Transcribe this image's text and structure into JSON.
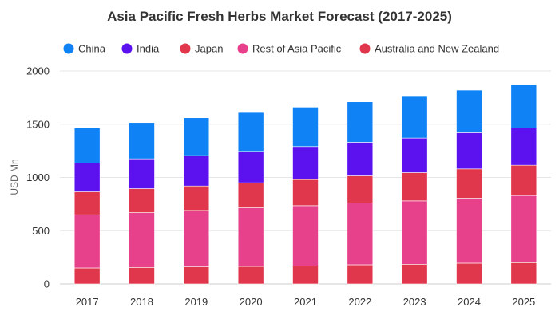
{
  "chart_data": {
    "type": "bar",
    "stacked": true,
    "title": "Asia Pacific Fresh Herbs Market Forecast (2017-2025)",
    "xlabel": "",
    "ylabel": "USD Mn",
    "ylim": [
      0,
      2000
    ],
    "yticks": [
      0,
      500,
      1000,
      1500,
      2000
    ],
    "grid": true,
    "legend_position": "top",
    "categories": [
      "2017",
      "2018",
      "2019",
      "2020",
      "2021",
      "2022",
      "2023",
      "2024",
      "2025"
    ],
    "series": [
      {
        "name": "Australia and New Zealand",
        "color": "#e0374d",
        "values": [
          150,
          155,
          160,
          165,
          170,
          180,
          185,
          195,
          200
        ]
      },
      {
        "name": "Rest of Asia Pacific",
        "color": "#e8418c",
        "values": [
          500,
          515,
          530,
          550,
          565,
          580,
          595,
          610,
          630
        ]
      },
      {
        "name": "Japan",
        "color": "#e0374d",
        "values": [
          215,
          225,
          230,
          235,
          245,
          255,
          265,
          275,
          285
        ]
      },
      {
        "name": "India",
        "color": "#5c11ef",
        "values": [
          270,
          280,
          285,
          295,
          310,
          315,
          325,
          340,
          350
        ]
      },
      {
        "name": "China",
        "color": "#0f82f5",
        "values": [
          330,
          340,
          355,
          365,
          370,
          380,
          390,
          400,
          410
        ]
      }
    ],
    "legend": [
      {
        "name": "China",
        "color": "#0f82f5"
      },
      {
        "name": "India",
        "color": "#5c11ef"
      },
      {
        "name": "Japan",
        "color": "#e0374d"
      },
      {
        "name": "Rest of Asia Pacific",
        "color": "#e8418c"
      },
      {
        "name": "Australia and New Zealand",
        "color": "#e0374d"
      }
    ]
  }
}
